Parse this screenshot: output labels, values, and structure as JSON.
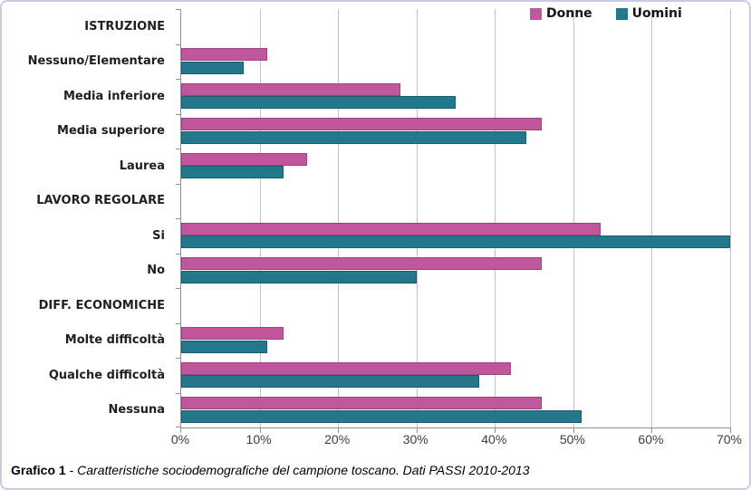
{
  "chart_data": {
    "type": "bar",
    "orientation": "horizontal",
    "title": "",
    "xlabel": "",
    "ylabel": "",
    "xlim": [
      0,
      70
    ],
    "grid": true,
    "legend_position": "top-right",
    "x_tick_labels": [
      "0%",
      "10%",
      "20%",
      "30%",
      "40%",
      "50%",
      "60%",
      "70%"
    ],
    "categories": [
      {
        "label": "ISTRUZIONE",
        "header": true
      },
      {
        "label": "Nessuno/Elementare",
        "header": false
      },
      {
        "label": "Media inferiore",
        "header": false
      },
      {
        "label": "Media superiore",
        "header": false
      },
      {
        "label": "Laurea",
        "header": false
      },
      {
        "label": "LAVORO REGOLARE",
        "header": true
      },
      {
        "label": "Si",
        "header": false
      },
      {
        "label": "No",
        "header": false
      },
      {
        "label": "DIFF. ECONOMICHE",
        "header": true
      },
      {
        "label": "Molte difficoltà",
        "header": false
      },
      {
        "label": "Qualche difficoltà",
        "header": false
      },
      {
        "label": "Nessuna",
        "header": false
      }
    ],
    "series": [
      {
        "name": "Donne",
        "color": "#c0579c",
        "border_color": "#9a4480",
        "values": [
          null,
          11,
          28,
          46,
          16,
          null,
          53.5,
          46,
          null,
          13,
          42,
          46
        ]
      },
      {
        "name": "Uomini",
        "color": "#23798b",
        "border_color": "#175e6e",
        "values": [
          null,
          8,
          35,
          44,
          13,
          null,
          70,
          30,
          null,
          11,
          38,
          51
        ]
      }
    ]
  },
  "colors": {
    "gridline": "#c3c3c3",
    "axis": "#8f8f8f",
    "frame_border": "#c9cbe3",
    "label_text": "#1f1f1f",
    "tick_text": "#3d3d3d"
  },
  "caption": {
    "label": "Grafico 1",
    "separator": " - ",
    "text": "Caratteristiche sociodemografiche del campione toscano. Dati PASSI 2010-2013"
  }
}
